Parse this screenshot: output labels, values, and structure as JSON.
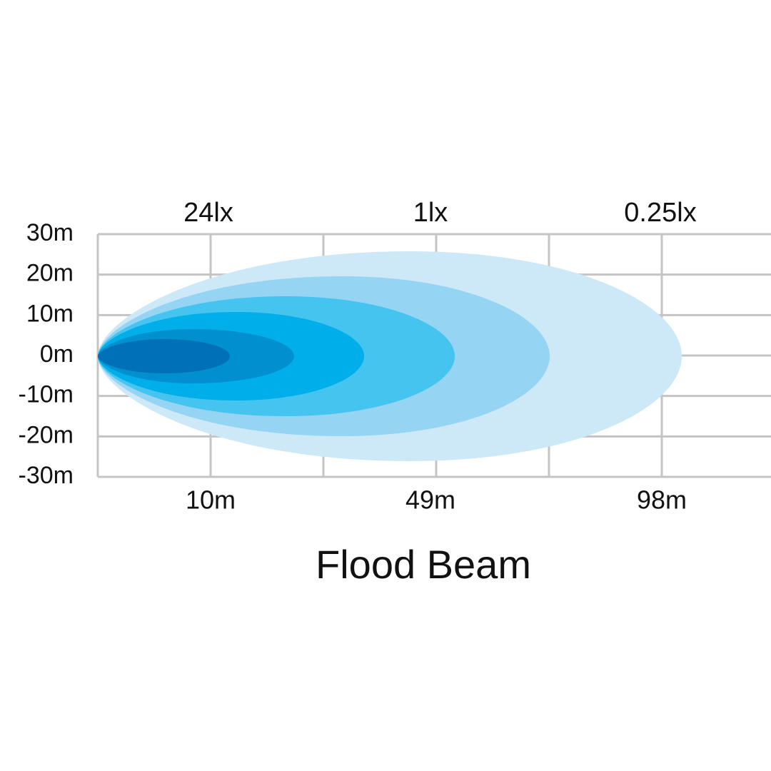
{
  "title": "Flood Beam",
  "lux_labels": [
    "24lx",
    "1lx",
    "0.25lx"
  ],
  "distance_labels": [
    "10m",
    "49m",
    "98m"
  ],
  "y_labels": [
    "30m",
    "20m",
    "10m",
    "0m",
    "-10m",
    "-20m",
    "-30m"
  ]
}
